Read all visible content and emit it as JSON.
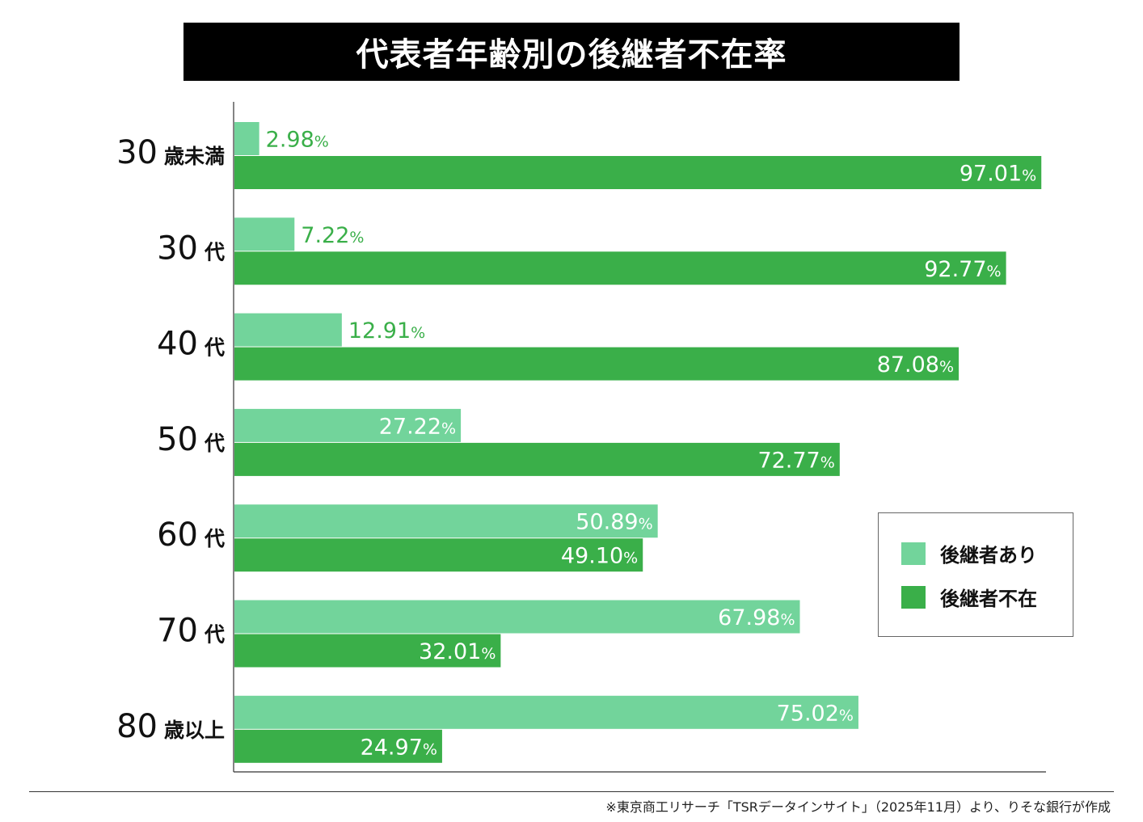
{
  "title": "代表者年齢別の後継者不在率",
  "colors": {
    "with_successor": "#72d49b",
    "without_successor": "#3aaf49",
    "label_outside": "#3aaf49",
    "label_inside": "#ffffff"
  },
  "legend": {
    "items": [
      {
        "label": "後継者あり"
      },
      {
        "label": "後継者不在"
      }
    ],
    "position": "right"
  },
  "footer": {
    "note": "※東京商工リサーチ「TSRデータインサイト」（2025年11月）より、りそな銀行が作成"
  },
  "chart_data": {
    "type": "bar",
    "orientation": "horizontal",
    "title": "代表者年齢別の後継者不在率",
    "categories": [
      {
        "num": "30",
        "suffix": "歳未満"
      },
      {
        "num": "30",
        "suffix": "代"
      },
      {
        "num": "40",
        "suffix": "代"
      },
      {
        "num": "50",
        "suffix": "代"
      },
      {
        "num": "60",
        "suffix": "代"
      },
      {
        "num": "70",
        "suffix": "代"
      },
      {
        "num": "80",
        "suffix": "歳以上"
      }
    ],
    "unit": "%",
    "xlim": [
      0,
      100
    ],
    "grid": false,
    "series": [
      {
        "name": "後継者あり",
        "values": [
          2.98,
          7.22,
          12.91,
          27.22,
          50.89,
          67.98,
          75.02
        ],
        "labels": [
          "2.98",
          "7.22",
          "12.91",
          "27.22",
          "50.89",
          "67.98",
          "75.02"
        ]
      },
      {
        "name": "後継者不在",
        "values": [
          97.01,
          92.77,
          87.08,
          72.77,
          49.1,
          32.01,
          24.97
        ],
        "labels": [
          "97.01",
          "92.77",
          "87.08",
          "72.77",
          "49.10",
          "32.01",
          "24.97"
        ]
      }
    ]
  }
}
